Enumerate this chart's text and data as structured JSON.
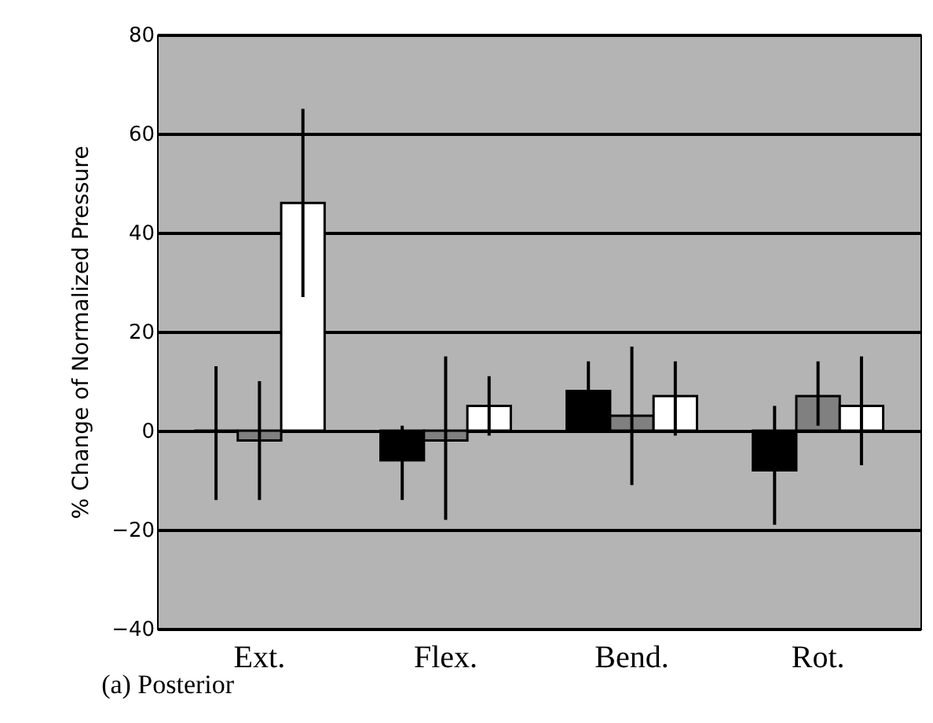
{
  "chart_data": {
    "type": "bar",
    "ylabel": "% Change of Normalized Pressure",
    "annotations": [
      "(a) Posterior"
    ],
    "categories": [
      "Ext.",
      "Flex.",
      "Bend.",
      "Rot."
    ],
    "series": [
      {
        "color": "#000000",
        "values": [
          0,
          -6,
          8,
          -8
        ],
        "errors": [
          [
            -14,
            13
          ],
          [
            -14,
            1
          ],
          [
            8,
            14
          ],
          [
            -19,
            5
          ]
        ]
      },
      {
        "color": "#808080",
        "values": [
          -2,
          -2,
          3,
          7
        ],
        "errors": [
          [
            -14,
            10
          ],
          [
            -18,
            15
          ],
          [
            -11,
            17
          ],
          [
            1,
            14
          ]
        ]
      },
      {
        "color": "#ffffff",
        "values": [
          46,
          5,
          7,
          5
        ],
        "errors": [
          [
            27,
            65
          ],
          [
            -1,
            11
          ],
          [
            -1,
            14
          ],
          [
            -7,
            15
          ]
        ]
      }
    ],
    "ylim": [
      -40,
      80
    ],
    "yticks": [
      -40,
      -20,
      0,
      20,
      40,
      60,
      80
    ],
    "grid": "y",
    "legend": false
  }
}
